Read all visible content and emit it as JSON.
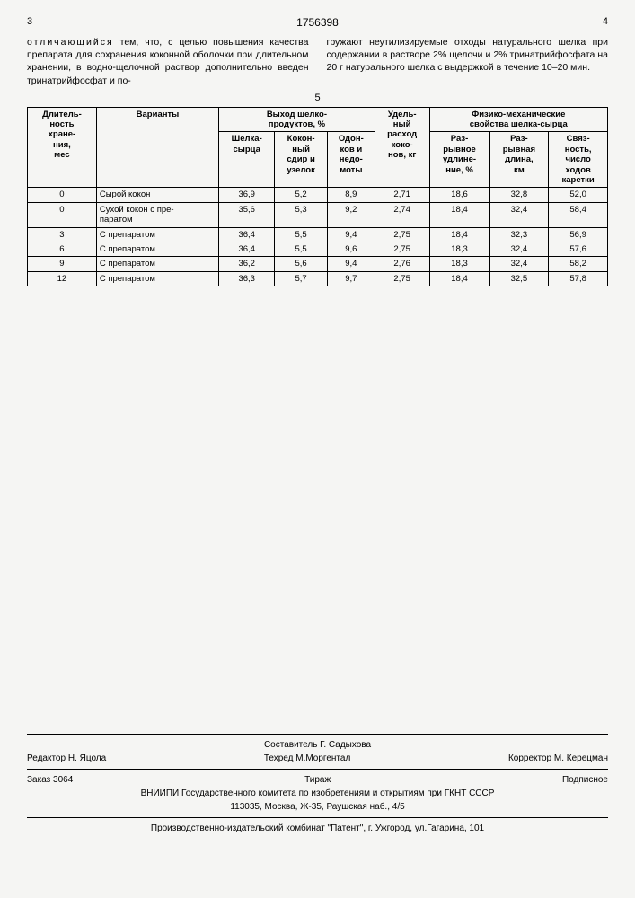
{
  "header": {
    "page_left": "3",
    "patent_number": "1756398",
    "page_right": "4"
  },
  "left_col": {
    "spaced_word": "отличающийся",
    "text": " тем, что, с целью повышения качества препарата для сохранения коконной оболочки при длительном хранении, в водно-щелочной раствор дополнительно введен тринатрийфосфат и по-"
  },
  "right_col": {
    "text": "гружают неутилизируемые отходы натурального шелка при содержании в растворе 2% щелочи и 2% тринатрийфосфата на 20 г натурального шелка с выдержкой в течение 10–20 мин."
  },
  "center_num": "5",
  "table": {
    "headers": {
      "col1": "Длитель-\nность\nхране-\nния,\nмес",
      "col2": "Варианты",
      "group1": "Выход шелко-\nпродуктов, %",
      "g1_sub1": "Шелка-\nсырца",
      "g1_sub2": "Кокон-\nный\nсдир и\nузелок",
      "g1_sub3": "Одон-\nков и\nнедо-\nмоты",
      "col4": "Удель-\nный\nрасход\nкоко-\nнов, кг",
      "group2": "Физико-механические\nсвойства шелка-сырца",
      "g2_sub1": "Раз-\nрывное\nудлине-\nние, %",
      "g2_sub2": "Раз-\nрывная\nдлина,\nкм",
      "g2_sub3": "Связ-\nность,\nчисло\nходов\nкаретки"
    },
    "rows": [
      [
        "0",
        "Сырой кокон",
        "36,9",
        "5,2",
        "8,9",
        "2,71",
        "18,6",
        "32,8",
        "52,0"
      ],
      [
        "0",
        "Сухой кокон с пре-\nпаратом",
        "35,6",
        "5,3",
        "9,2",
        "2,74",
        "18,4",
        "32,4",
        "58,4"
      ],
      [
        "3",
        "С препаратом",
        "36,4",
        "5,5",
        "9,4",
        "2,75",
        "18,4",
        "32,3",
        "56,9"
      ],
      [
        "6",
        "С препаратом",
        "36,4",
        "5,5",
        "9,6",
        "2,75",
        "18,3",
        "32,4",
        "57,6"
      ],
      [
        "9",
        "С препаратом",
        "36,2",
        "5,6",
        "9,4",
        "2,76",
        "18,3",
        "32,4",
        "58,2"
      ],
      [
        "12",
        "С препаратом",
        "36,3",
        "5,7",
        "9,7",
        "2,75",
        "18,4",
        "32,5",
        "57,8"
      ]
    ]
  },
  "footer": {
    "editor_label": "Редактор",
    "editor": "Н. Яцола",
    "compiler_label": "Составитель",
    "compiler": "Г. Садыхова",
    "techred_label": "Техред",
    "techred": "М.Моргентал",
    "corrector_label": "Корректор",
    "corrector": "М. Керецман",
    "order_label": "Заказ",
    "order": "3064",
    "tirazh": "Тираж",
    "subscription": "Подписное",
    "org": "ВНИИПИ Государственного комитета по изобретениям и открытиям при ГКНТ СССР",
    "address1": "113035, Москва, Ж-35, Раушская наб., 4/5",
    "address2": "Производственно-издательский комбинат \"Патент\", г. Ужгород, ул.Гагарина, 101"
  }
}
